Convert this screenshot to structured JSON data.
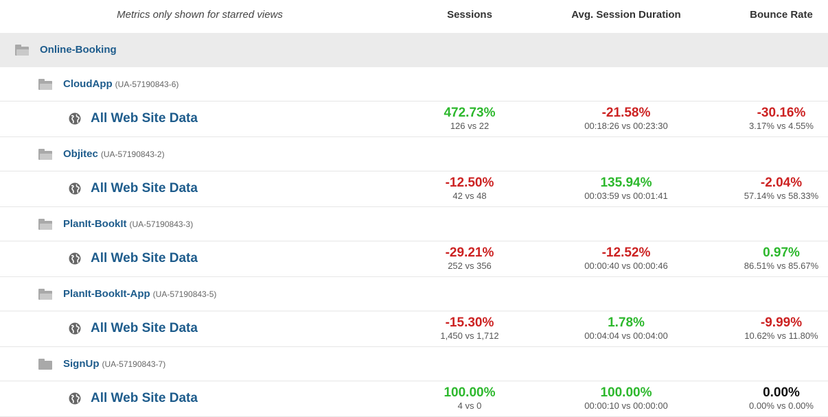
{
  "header": {
    "note": "Metrics only shown for starred views",
    "sessions": "Sessions",
    "duration": "Avg. Session Duration",
    "bounce": "Bounce Rate"
  },
  "group": {
    "name": "Online-Booking",
    "icon": "folder-open-icon"
  },
  "colors": {
    "positive": "#2db82d",
    "negative": "#cc2222",
    "neutral": "#111111",
    "link": "#1e5c8c"
  },
  "accounts": [
    {
      "name": "CloudApp",
      "id": "(UA-57190843-6)",
      "icon": "folder-open-icon",
      "view": {
        "name": "All Web Site Data",
        "icon": "globe-icon",
        "sessions": {
          "pct": "472.73%",
          "cmp": "126 vs 22",
          "trend": "positive"
        },
        "duration": {
          "pct": "-21.58%",
          "cmp": "00:18:26 vs 00:23:30",
          "trend": "negative"
        },
        "bounce": {
          "pct": "-30.16%",
          "cmp": "3.17% vs 4.55%",
          "trend": "negative"
        }
      }
    },
    {
      "name": "Objitec",
      "id": "(UA-57190843-2)",
      "icon": "folder-open-icon",
      "view": {
        "name": "All Web Site Data",
        "icon": "globe-icon",
        "sessions": {
          "pct": "-12.50%",
          "cmp": "42 vs 48",
          "trend": "negative"
        },
        "duration": {
          "pct": "135.94%",
          "cmp": "00:03:59 vs 00:01:41",
          "trend": "positive"
        },
        "bounce": {
          "pct": "-2.04%",
          "cmp": "57.14% vs 58.33%",
          "trend": "negative"
        }
      }
    },
    {
      "name": "PlanIt-BookIt",
      "id": "(UA-57190843-3)",
      "icon": "folder-open-icon",
      "view": {
        "name": "All Web Site Data",
        "icon": "globe-icon",
        "sessions": {
          "pct": "-29.21%",
          "cmp": "252 vs 356",
          "trend": "negative"
        },
        "duration": {
          "pct": "-12.52%",
          "cmp": "00:00:40 vs 00:00:46",
          "trend": "negative"
        },
        "bounce": {
          "pct": "0.97%",
          "cmp": "86.51% vs 85.67%",
          "trend": "positive"
        }
      }
    },
    {
      "name": "PlanIt-BookIt-App",
      "id": "(UA-57190843-5)",
      "icon": "folder-open-icon",
      "view": {
        "name": "All Web Site Data",
        "icon": "globe-icon",
        "sessions": {
          "pct": "-15.30%",
          "cmp": "1,450 vs 1,712",
          "trend": "negative"
        },
        "duration": {
          "pct": "1.78%",
          "cmp": "00:04:04 vs 00:04:00",
          "trend": "positive"
        },
        "bounce": {
          "pct": "-9.99%",
          "cmp": "10.62% vs 11.80%",
          "trend": "negative"
        }
      }
    },
    {
      "name": "SignUp",
      "id": "(UA-57190843-7)",
      "icon": "folder-icon",
      "view": {
        "name": "All Web Site Data",
        "icon": "globe-icon",
        "sessions": {
          "pct": "100.00%",
          "cmp": "4 vs 0",
          "trend": "positive"
        },
        "duration": {
          "pct": "100.00%",
          "cmp": "00:00:10 vs 00:00:00",
          "trend": "positive"
        },
        "bounce": {
          "pct": "0.00%",
          "cmp": "0.00% vs 0.00%",
          "trend": "neutral"
        }
      }
    }
  ]
}
